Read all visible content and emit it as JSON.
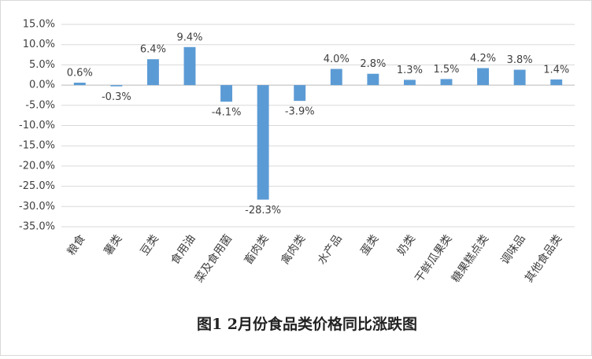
{
  "chart_data": {
    "type": "bar",
    "title": "图1 2月份食品类价格同比涨跌图",
    "categories": [
      "粮食",
      "薯类",
      "豆类",
      "食用油",
      "菜及食用菌",
      "畜肉类",
      "禽肉类",
      "水产品",
      "蛋类",
      "奶类",
      "干鲜瓜果类",
      "糖果糕点类",
      "调味品",
      "其他食品类"
    ],
    "values": [
      0.6,
      -0.3,
      6.4,
      9.4,
      -4.1,
      -28.3,
      -3.9,
      4.0,
      2.8,
      1.3,
      1.5,
      4.2,
      3.8,
      1.4
    ],
    "value_labels": [
      "0.6%",
      "-0.3%",
      "6.4%",
      "9.4%",
      "-4.1%",
      "-28.3%",
      "-3.9%",
      "4.0%",
      "2.8%",
      "1.3%",
      "1.5%",
      "4.2%",
      "3.8%",
      "1.4%"
    ],
    "color": "#5b9bd5",
    "ylim": [
      -35,
      15
    ],
    "yticks": [
      {
        "value": 15,
        "label": "15.0%"
      },
      {
        "value": 10,
        "label": "10.0%"
      },
      {
        "value": 5,
        "label": "5.0%"
      },
      {
        "value": 0,
        "label": "0.0%"
      },
      {
        "value": -5,
        "label": "-5.0%"
      },
      {
        "value": -10,
        "label": "-10.0%"
      },
      {
        "value": -15,
        "label": "-15.0%"
      },
      {
        "value": -20,
        "label": "-20.0%"
      },
      {
        "value": -25,
        "label": "-25.0%"
      },
      {
        "value": -30,
        "label": "-30.0%"
      },
      {
        "value": -35,
        "label": "-35.0%"
      }
    ],
    "grid": true
  }
}
